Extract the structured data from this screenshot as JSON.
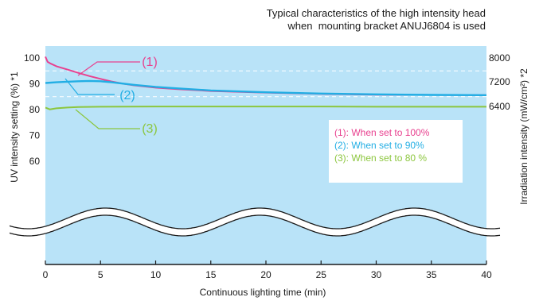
{
  "chart_data": {
    "type": "line",
    "title": "Typical characteristics of the high intensity head",
    "subtitle": "when  mounting bracket ANUJ6804 is used",
    "xlabel": "Continuous lighting time (min)",
    "ylabel": "UV intensity setting (%) *1",
    "y2label": "Irradiation intensity (mW/cm²) *2",
    "xlim": [
      0,
      40
    ],
    "x_ticks": [
      "0",
      "5",
      "10",
      "15",
      "20",
      "25",
      "30",
      "35",
      "40"
    ],
    "y_ticks": [
      "100",
      "90",
      "80",
      "70",
      "60"
    ],
    "y2_ticks": [
      "8000",
      "7200",
      "6400"
    ],
    "axis_break": true,
    "grid": "dashed horizontal at 95 and 85",
    "background_color": "#b9e3f8",
    "series": [
      {
        "name": "(1): When set to 100%",
        "callout": "(1)",
        "color": "#e8418f",
        "x": [
          0,
          0.2,
          0.5,
          1,
          2,
          3,
          4,
          5,
          6,
          7,
          8,
          10,
          12,
          15,
          20,
          25,
          30,
          35,
          40
        ],
        "y": [
          100.5,
          98.5,
          97.8,
          96.8,
          95.5,
          94.2,
          93.0,
          91.9,
          90.9,
          90.1,
          89.4,
          88.5,
          87.9,
          87.2,
          86.6,
          86.1,
          85.8,
          85.7,
          85.6
        ]
      },
      {
        "name": "(2): When set to 90%",
        "callout": "(2)",
        "color": "#22aee4",
        "x": [
          0,
          1,
          2,
          3,
          4,
          5,
          6,
          7,
          8,
          10,
          12,
          15,
          20,
          25,
          30,
          35,
          40
        ],
        "y": [
          90.3,
          90.6,
          90.8,
          91.0,
          91.1,
          91.0,
          90.6,
          90.1,
          89.6,
          88.8,
          88.2,
          87.4,
          86.7,
          86.2,
          85.9,
          85.7,
          85.6
        ]
      },
      {
        "name": "(3): When set to 80 %",
        "callout": "(3)",
        "color": "#8cc63e",
        "x": [
          0,
          0.4,
          1,
          2,
          3,
          5,
          10,
          15,
          20,
          25,
          30,
          35,
          40
        ],
        "y": [
          80.8,
          80.1,
          80.5,
          80.8,
          81.0,
          81.1,
          81.2,
          81.2,
          81.2,
          81.2,
          81.1,
          81.1,
          81.1
        ]
      }
    ]
  }
}
